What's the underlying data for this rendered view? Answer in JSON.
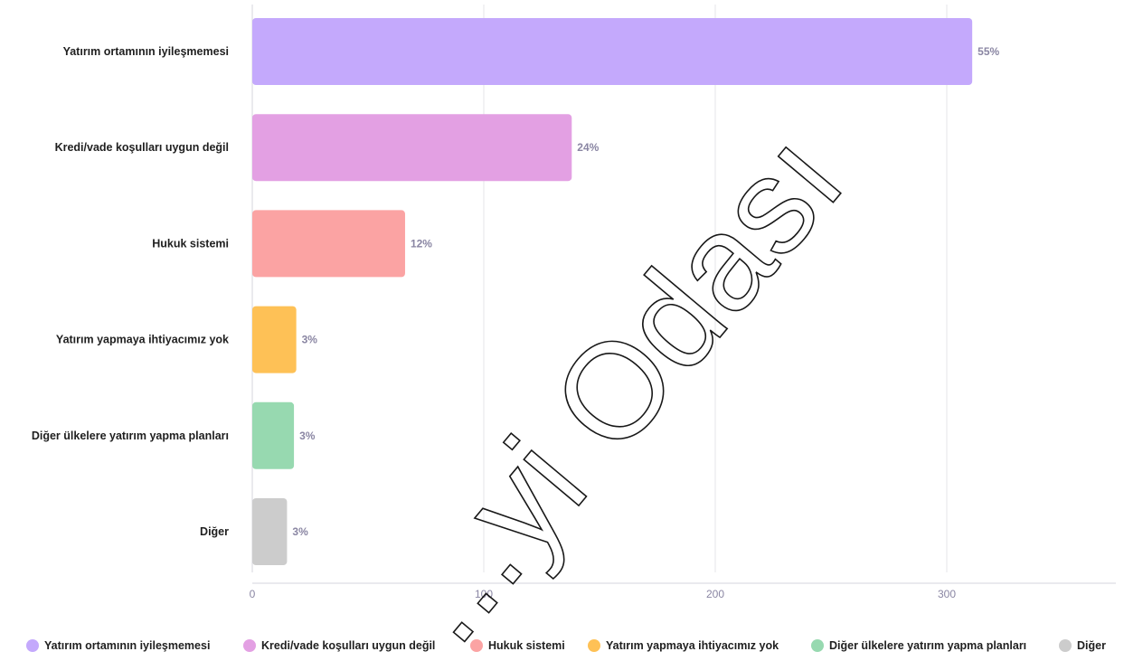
{
  "chart_data": {
    "type": "bar",
    "orientation": "horizontal",
    "categories": [
      "Yatırım ortamının iyileşmemesi",
      "Kredi/vade koşulları uygun değil",
      "Hukuk sistemi",
      "Yatırım yapmaya ihtiyacımız yok",
      "Diğer ülkelere yatırım yapma planları",
      "Diğer"
    ],
    "values": [
      311,
      138,
      66,
      19,
      18,
      15
    ],
    "data_labels": [
      "55%",
      "24%",
      "12%",
      "3%",
      "3%",
      "3%"
    ],
    "colors": [
      "#c4a9fc",
      "#e3a0e3",
      "#fba3a3",
      "#fec156",
      "#97d9b0",
      "#cccccc"
    ],
    "xlim": [
      0,
      375
    ],
    "xticks": [
      0,
      100,
      200,
      300
    ],
    "grid": true,
    "legend_position": "bottom"
  },
  "watermark": {
    "text": "...yi Odası"
  }
}
